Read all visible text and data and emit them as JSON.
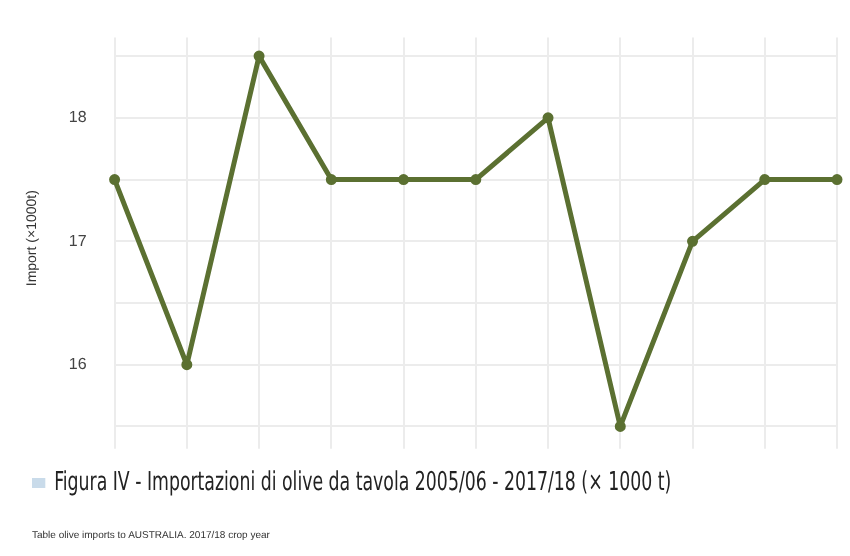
{
  "chart_data": {
    "type": "line",
    "title": "Figura IV - Importazioni di olive da tavola 2005/06 - 2017/18 (× 1000 t)",
    "ylabel": "Import (×1000t)",
    "annotations": [
      "Table olive imports to AUSTRALIA. 2017/18 crop year"
    ],
    "categories": [
      null,
      null,
      null,
      null,
      null,
      null,
      null,
      null,
      null,
      null,
      null
    ],
    "series": [
      {
        "color": "#5b7031",
        "values": [
          17.5,
          16,
          18.5,
          17.5,
          17.5,
          17.5,
          18,
          15.5,
          17,
          17.5,
          17.5
        ]
      }
    ],
    "ylim": [
      15.4,
      18.65
    ],
    "yticks": [
      {
        "value": 15.5,
        "label": null
      },
      16,
      {
        "value": 16.5,
        "label": null
      },
      17,
      {
        "value": 17.5,
        "label": null
      },
      18,
      {
        "value": 18.5,
        "label": null
      }
    ],
    "grid": true,
    "marker": "circle",
    "line_style": "solid",
    "legend": false
  }
}
